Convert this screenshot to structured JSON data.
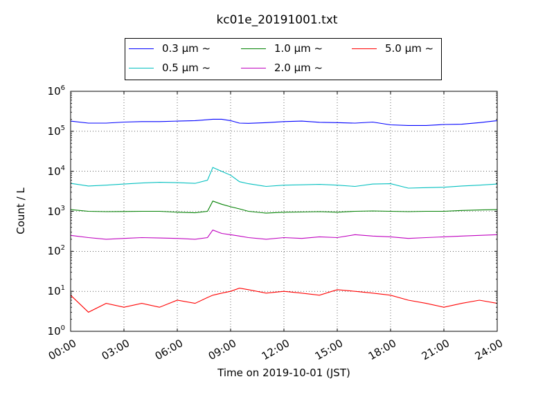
{
  "chart_data": {
    "type": "line",
    "title": "kc01e_20191001.txt",
    "xlabel": "Time on 2019-10-01 (JST)",
    "ylabel": "Count / L",
    "yscale": "log",
    "xlim": [
      0,
      24
    ],
    "ylim": [
      1,
      1000000
    ],
    "grid": true,
    "legend_placement": "top-center",
    "x_tick_labels": [
      "00:00",
      "03:00",
      "06:00",
      "09:00",
      "12:00",
      "15:00",
      "18:00",
      "21:00",
      "24:00"
    ],
    "y_tick_labels": [
      {
        "base": "10",
        "exp": "0"
      },
      {
        "base": "10",
        "exp": "1"
      },
      {
        "base": "10",
        "exp": "2"
      },
      {
        "base": "10",
        "exp": "3"
      },
      {
        "base": "10",
        "exp": "4"
      },
      {
        "base": "10",
        "exp": "5"
      },
      {
        "base": "10",
        "exp": "6"
      }
    ],
    "x": [
      0,
      1,
      2,
      3,
      4,
      5,
      6,
      7,
      7.7,
      8,
      8.5,
      9,
      9.5,
      10,
      11,
      12,
      13,
      14,
      15,
      16,
      17,
      18,
      19,
      20,
      21,
      22,
      23,
      24
    ],
    "series": [
      {
        "name": "0.3 μm ~",
        "color": "#0000ff",
        "legend_col": 0,
        "legend_row": 0,
        "values": [
          180000,
          160000,
          160000,
          170000,
          175000,
          175000,
          180000,
          185000,
          195000,
          200000,
          200000,
          185000,
          160000,
          158000,
          165000,
          175000,
          180000,
          168000,
          165000,
          160000,
          170000,
          145000,
          140000,
          140000,
          148000,
          150000,
          165000,
          185000
        ]
      },
      {
        "name": "0.5 μm ~",
        "color": "#00bfbf",
        "legend_col": 0,
        "legend_row": 1,
        "values": [
          5000,
          4300,
          4500,
          4800,
          5100,
          5300,
          5200,
          5000,
          6000,
          12500,
          10000,
          8000,
          5500,
          4900,
          4200,
          4500,
          4600,
          4700,
          4500,
          4200,
          4800,
          4900,
          3800,
          3900,
          4000,
          4300,
          4500,
          4800
        ]
      },
      {
        "name": "1.0 μm ~",
        "color": "#008000",
        "legend_col": 1,
        "legend_row": 0,
        "values": [
          1100,
          1000,
          980,
          990,
          1000,
          1000,
          950,
          920,
          1000,
          1800,
          1500,
          1300,
          1150,
          1000,
          900,
          950,
          960,
          980,
          950,
          1000,
          1020,
          1000,
          980,
          1000,
          1000,
          1050,
          1080,
          1100
        ]
      },
      {
        "name": "2.0 μm ~",
        "color": "#bf00bf",
        "legend_col": 1,
        "legend_row": 1,
        "values": [
          250,
          220,
          200,
          210,
          220,
          215,
          210,
          200,
          220,
          340,
          280,
          260,
          240,
          220,
          200,
          220,
          210,
          230,
          220,
          260,
          240,
          230,
          210,
          220,
          230,
          240,
          250,
          260
        ]
      },
      {
        "name": "5.0 μm ~",
        "color": "#ff0000",
        "legend_col": 2,
        "legend_row": 0,
        "values": [
          8,
          3,
          5,
          4,
          5,
          4,
          6,
          5,
          7,
          8,
          9,
          10,
          12,
          11,
          9,
          10,
          9,
          8,
          11,
          10,
          9,
          8,
          6,
          5,
          4,
          5,
          6,
          5
        ]
      }
    ]
  }
}
